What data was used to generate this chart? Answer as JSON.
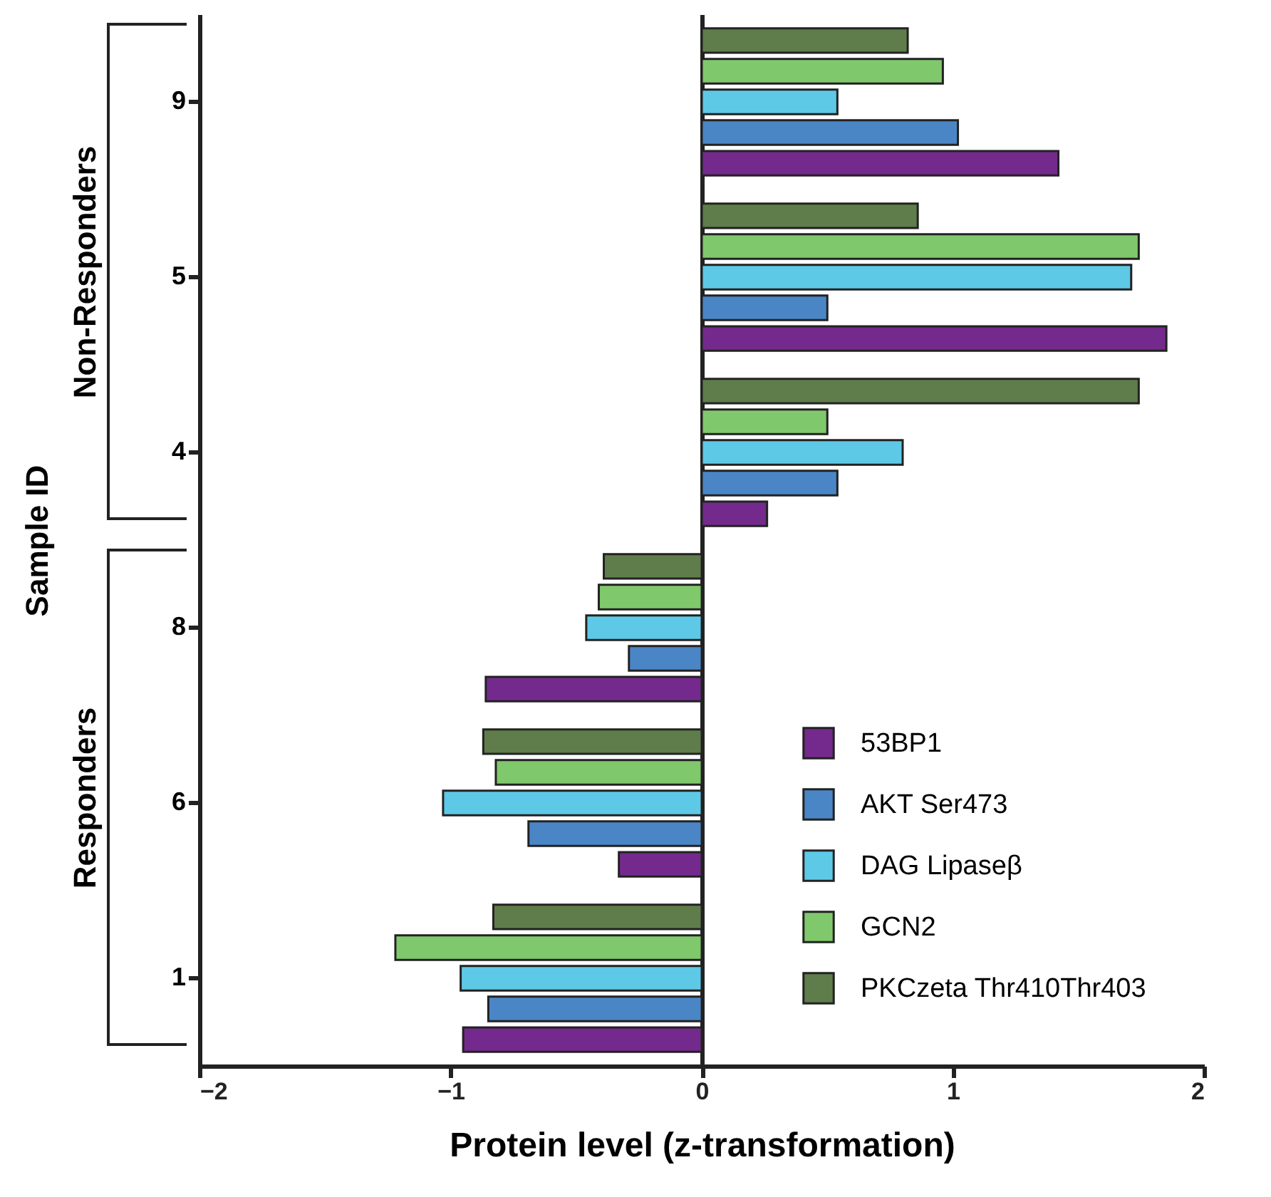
{
  "chart_data": {
    "type": "bar",
    "orientation": "horizontal",
    "xlabel": "Protein level (z-transformation)",
    "ylabel": "Sample ID",
    "categories": [
      "9",
      "5",
      "4",
      "8",
      "6",
      "1"
    ],
    "series": [
      {
        "name": "53BP1",
        "color": "#742a8c",
        "values": [
          1.42,
          1.85,
          0.26,
          -0.86,
          -0.33,
          -0.95
        ]
      },
      {
        "name": "AKT Ser473",
        "color": "#4a86c6",
        "values": [
          1.02,
          0.5,
          0.54,
          -0.29,
          -0.69,
          -0.85
        ]
      },
      {
        "name": "DAG Lipaseβ",
        "color": "#5ec9e6",
        "values": [
          0.54,
          1.71,
          0.8,
          -0.46,
          -1.03,
          -0.96
        ]
      },
      {
        "name": "GCN2",
        "color": "#80c86c",
        "values": [
          0.96,
          1.74,
          0.5,
          -0.41,
          -0.82,
          -1.22
        ]
      },
      {
        "name": "PKCzeta Thr410Thr403",
        "color": "#5f7d4a",
        "values": [
          0.82,
          0.86,
          1.74,
          -0.39,
          -0.87,
          -0.83
        ]
      }
    ],
    "xlim": [
      -2,
      2
    ],
    "xticks": [
      -2,
      -1,
      0,
      1,
      2
    ],
    "legend": "bottom right",
    "annotations": [
      "Non-Responders",
      "Responders"
    ]
  }
}
